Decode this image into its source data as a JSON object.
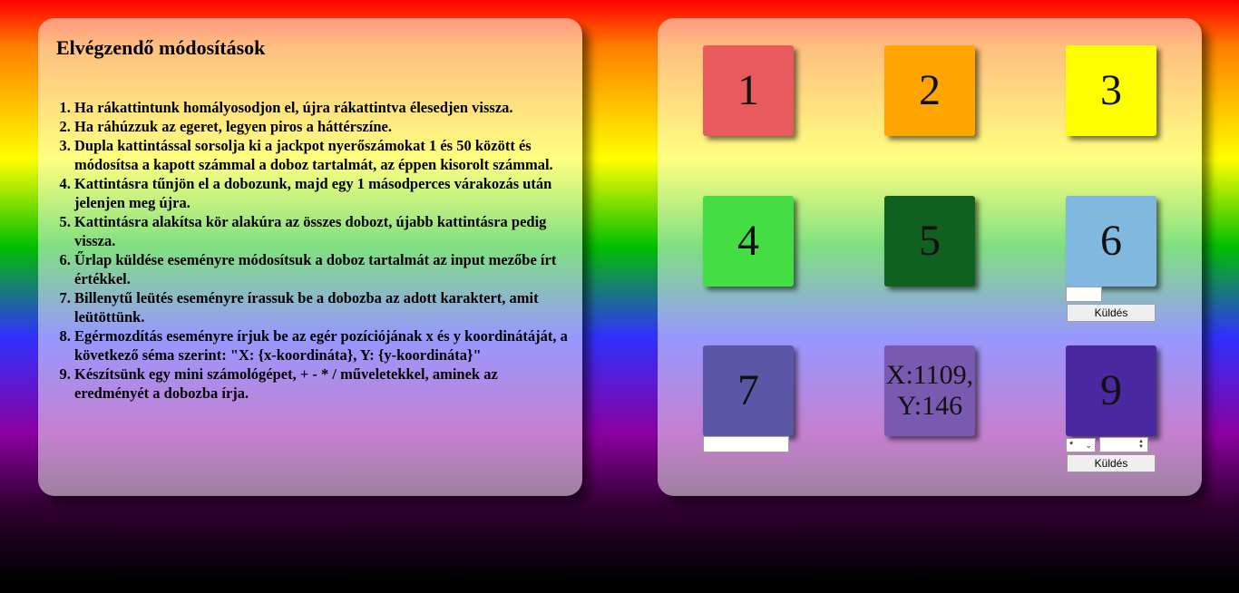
{
  "tasks": {
    "title": "Elvégzendő módosítások",
    "items": [
      "Ha rákattintunk homályosodjon el, újra rákattintva élesedjen vissza.",
      "Ha ráhúzzuk az egeret, legyen piros a háttérszíne.",
      "Dupla kattintással sorsolja ki a jackpot nyerőszámokat 1 és 50 között és módosítsa a kapott számmal a doboz tartalmát, az éppen kisorolt számmal.",
      "Kattintásra tűnjön el a dobozunk, majd egy 1 másodperces várakozás után jelenjen meg újra.",
      "Kattintásra alakítsa kör alakúra az összes dobozt, újabb kattintásra pedig vissza.",
      "Űrlap küldése eseményre módosítsuk a doboz tartalmát az input mezőbe írt értékkel.",
      "Billenytű leütés eseményre írassuk be a dobozba az adott karaktert, amit leütöttünk.",
      "Egérmozdítás eseményre írjuk be az egér pozíciójának x és y koordinátáját, a következő séma szerint: \"X: {x-koordináta}, Y: {y-koordináta}\"",
      "Készítsünk egy mini számológépet, + - * / műveletekkel, aminek az eredményét a dobozba írja."
    ]
  },
  "boxes": {
    "b1": "1",
    "b2": "2",
    "b3": "3",
    "b4": "4",
    "b5": "5",
    "b6": "6",
    "b7": "7",
    "b8": "X:1109, Y:146",
    "b9": "9"
  },
  "forms": {
    "box6": {
      "input_value": "",
      "submit_label": "Küldés"
    },
    "box7": {
      "input_value": ""
    },
    "box9": {
      "operator": "*",
      "number_value": "",
      "submit_label": "Küldés"
    }
  },
  "colors": {
    "box1": "#e85a5c",
    "box2": "#ffa500",
    "box3": "#ffff00",
    "box4": "#44dd44",
    "box5": "#106020",
    "box6": "#80b8e0",
    "box7": "#5b56a6",
    "box8": "#7a5ab0",
    "box9": "#4a28a0"
  }
}
